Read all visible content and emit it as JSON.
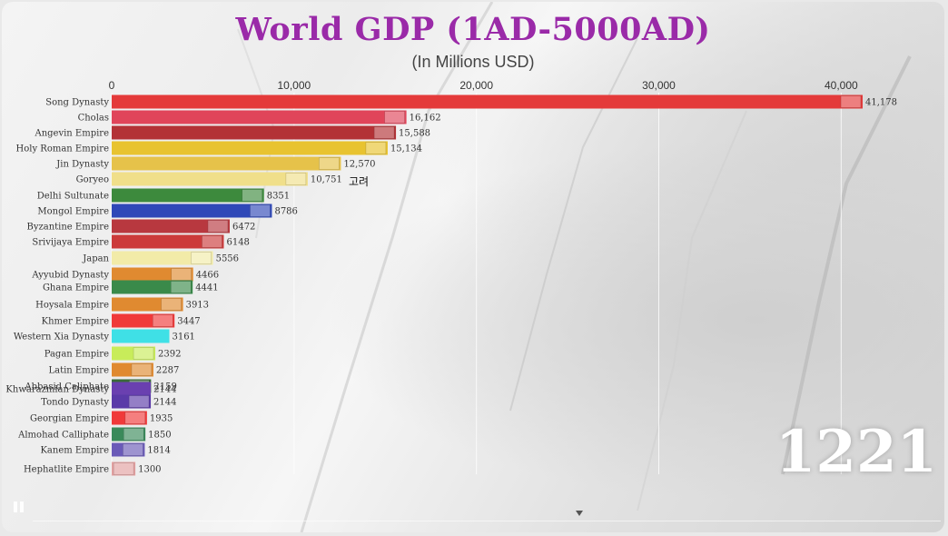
{
  "chart_data": {
    "type": "bar",
    "orientation": "horizontal",
    "title": "World GDP (1AD-5000AD)",
    "subtitle": "(In Millions USD)",
    "xlim": [
      0,
      41178
    ],
    "xticks": [
      0,
      10000,
      20000,
      30000,
      40000
    ],
    "xtick_labels": [
      "0",
      "10,000",
      "20,000",
      "30,000",
      "40,000"
    ],
    "grid": true,
    "year": "1221",
    "annotation": "고려",
    "bars": [
      {
        "label": "Song Dynasty",
        "value": 41178,
        "value_label": "41,178",
        "color": "#e43a3a",
        "flag": "red-flag"
      },
      {
        "label": "Cholas",
        "value": 16162,
        "value_label": "16,162",
        "color": "#e0455a",
        "flag": "cholas-flag"
      },
      {
        "label": "Angevin Empire",
        "value": 15588,
        "value_label": "15,588",
        "color": "#b33236",
        "flag": "angevin-flag"
      },
      {
        "label": "Holy Roman Empire",
        "value": 15134,
        "value_label": "15,134",
        "color": "#e8c330",
        "flag": "hre-flag"
      },
      {
        "label": "Jin Dynasty",
        "value": 12570,
        "value_label": "12,570",
        "color": "#e6c24a",
        "flag": "jin-flag"
      },
      {
        "label": "Goryeo",
        "value": 10751,
        "value_label": "10,751",
        "color": "#f0df8a",
        "flag": "goryeo-flag"
      },
      {
        "label": "Delhi Sultunate",
        "value": 8351,
        "value_label": "8351",
        "color": "#3d8a3d",
        "flag": "delhi-flag"
      },
      {
        "label": "Mongol Empire",
        "value": 8786,
        "value_label": "8786",
        "color": "#2f48b8",
        "flag": "mongol-flag"
      },
      {
        "label": "Byzantine Empire",
        "value": 6472,
        "value_label": "6472",
        "color": "#b8383f",
        "flag": "byzantine-flag"
      },
      {
        "label": "Srivijaya Empire",
        "value": 6148,
        "value_label": "6148",
        "color": "#cc3a3a",
        "flag": "srivijaya-flag"
      },
      {
        "label": "Japan",
        "value": 5556,
        "value_label": "5556",
        "color": "#f2eba8",
        "flag": "japan-flag"
      },
      {
        "label": "Ayyubid Dynasty",
        "value": 4466,
        "value_label": "4466",
        "color": "#e08a30",
        "flag": "ayyubid-flag"
      },
      {
        "label": "Ghana Empire",
        "value": 4441,
        "value_label": "4441",
        "color": "#3a8a4a",
        "flag": "ghana-flag"
      },
      {
        "label": "Hoysala Empire",
        "value": 3913,
        "value_label": "3913",
        "color": "#e08a30",
        "flag": "hoysala-flag"
      },
      {
        "label": "Khmer Empire",
        "value": 3447,
        "value_label": "3447",
        "color": "#f03a3a",
        "flag": "khmer-flag"
      },
      {
        "label": "Western Xia Dynasty",
        "value": 3161,
        "value_label": "3161",
        "color": "#3fe0e6",
        "flag": "none"
      },
      {
        "label": "Pagan Empire",
        "value": 2392,
        "value_label": "2392",
        "color": "#c8ec5a",
        "flag": "pagan-flag"
      },
      {
        "label": "Latin Empire",
        "value": 2287,
        "value_label": "2287",
        "color": "#e08a30",
        "flag": "latin-flag"
      },
      {
        "label": "Abbasid Caliphate",
        "value": 2159,
        "value_label": "2159",
        "color": "#3a6a3a",
        "flag": "abbasid-flag"
      },
      {
        "label": "Khwarazmian Dynasty",
        "value": 2144,
        "value_label": "2144",
        "color": "#6a40b0",
        "flag": "none"
      },
      {
        "label": "Tondo Dynasty",
        "value": 2144,
        "value_label": "2144",
        "color": "#5a3aa8",
        "flag": "tondo-flag"
      },
      {
        "label": "Georgian Empire",
        "value": 1935,
        "value_label": "1935",
        "color": "#f03a3a",
        "flag": "georgian-flag"
      },
      {
        "label": "Almohad Calliphate",
        "value": 1850,
        "value_label": "1850",
        "color": "#3a8a5a",
        "flag": "almohad-flag"
      },
      {
        "label": "Kanem Empire",
        "value": 1814,
        "value_label": "1814",
        "color": "#6a5ab8",
        "flag": "kanem-flag"
      },
      {
        "label": "Hephatlite Empire",
        "value": 1300,
        "value_label": "1300",
        "color": "#e2a0a0",
        "flag": "hephatlite-flag"
      }
    ]
  }
}
